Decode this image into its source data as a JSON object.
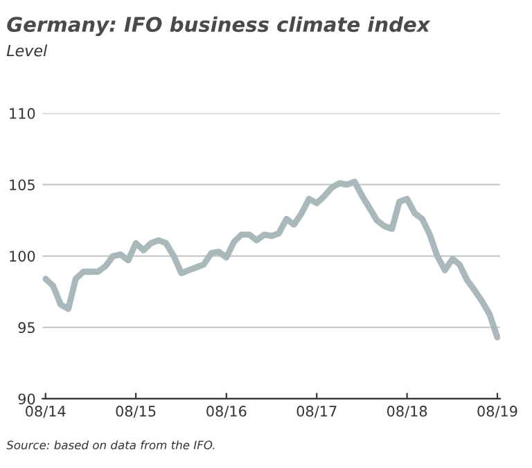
{
  "chart_data": {
    "type": "line",
    "title": "Germany: IFO business climate index",
    "subtitle": "Level",
    "x": [
      "2014-08",
      "2014-09",
      "2014-10",
      "2014-11",
      "2014-12",
      "2015-01",
      "2015-02",
      "2015-03",
      "2015-04",
      "2015-05",
      "2015-06",
      "2015-07",
      "2015-08",
      "2015-09",
      "2015-10",
      "2015-11",
      "2015-12",
      "2016-01",
      "2016-02",
      "2016-03",
      "2016-04",
      "2016-05",
      "2016-06",
      "2016-07",
      "2016-08",
      "2016-09",
      "2016-10",
      "2016-11",
      "2016-12",
      "2017-01",
      "2017-02",
      "2017-03",
      "2017-04",
      "2017-05",
      "2017-06",
      "2017-07",
      "2017-08",
      "2017-09",
      "2017-10",
      "2017-11",
      "2017-12",
      "2018-01",
      "2018-02",
      "2018-03",
      "2018-04",
      "2018-05",
      "2018-06",
      "2018-07",
      "2018-08",
      "2018-09",
      "2018-10",
      "2018-11",
      "2018-12",
      "2019-01",
      "2019-02",
      "2019-03",
      "2019-04",
      "2019-05",
      "2019-06",
      "2019-07",
      "2019-08"
    ],
    "series": [
      {
        "color": "#a9b9bb",
        "values": [
          98.4,
          97.9,
          96.6,
          96.3,
          98.4,
          98.9,
          98.9,
          98.9,
          99.3,
          100.0,
          100.1,
          99.7,
          100.9,
          100.4,
          100.9,
          101.1,
          100.9,
          100.0,
          98.8,
          99.0,
          99.2,
          99.4,
          100.2,
          100.3,
          99.9,
          101.0,
          101.5,
          101.5,
          101.1,
          101.5,
          101.4,
          101.6,
          102.6,
          102.2,
          103.0,
          104.0,
          103.7,
          104.2,
          104.8,
          105.1,
          105.0,
          105.2,
          104.2,
          103.4,
          102.5,
          102.1,
          101.9,
          103.8,
          104.0,
          103.0,
          102.6,
          101.5,
          100.0,
          99.0,
          99.8,
          99.4,
          98.3,
          97.6,
          96.8,
          95.9,
          94.3
        ]
      }
    ],
    "xlim": [
      "2014-07-20",
      "2019-08-12"
    ],
    "xticks": [
      {
        "value": "2014-08",
        "label": "08/14"
      },
      {
        "value": "2015-08",
        "label": "08/15"
      },
      {
        "value": "2016-08",
        "label": "08/16"
      },
      {
        "value": "2017-08",
        "label": "08/17"
      },
      {
        "value": "2018-08",
        "label": "08/18"
      },
      {
        "value": "2019-08",
        "label": "08/19"
      }
    ],
    "ylim": [
      90,
      110
    ],
    "yticks": [
      90,
      95,
      100,
      105,
      110
    ],
    "grid": "y",
    "line_style": "solid",
    "annotations": [
      "Source: based on data from the IFO."
    ]
  }
}
